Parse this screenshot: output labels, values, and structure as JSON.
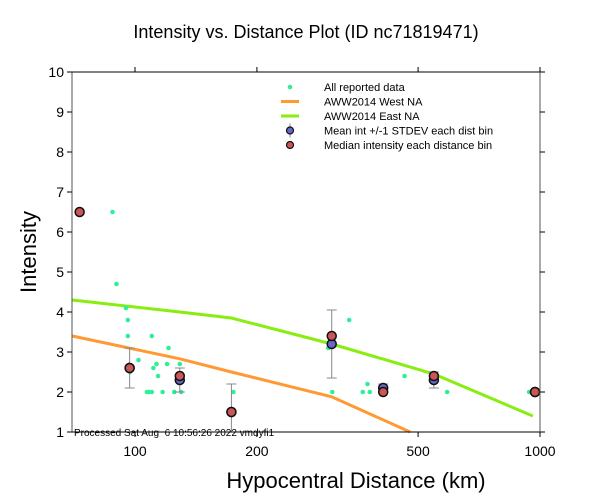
{
  "chart_data": {
    "type": "scatter",
    "title": "Intensity vs. Distance Plot (ID nc71819471)",
    "xlabel": "Hypocentral Distance (km)",
    "ylabel": "Intensity",
    "xscale": "log",
    "xlim": [
      70,
      1000
    ],
    "ylim": [
      1,
      10
    ],
    "xticks": [
      100,
      200,
      500,
      1000
    ],
    "xtick_labels": [
      "100",
      "200",
      "500",
      "1000"
    ],
    "yticks": [
      1,
      2,
      3,
      4,
      5,
      6,
      7,
      8,
      9,
      10
    ],
    "ytick_labels": [
      "1",
      "2",
      "3",
      "4",
      "5",
      "6",
      "7",
      "8",
      "9",
      "10"
    ],
    "grid": false,
    "legend_position": "top-right",
    "footer": "Processed Sat Aug  6 10:56:26 2022 vmdyfi1",
    "colors": {
      "reported": "#33ee99",
      "west": "#ff9933",
      "east": "#88ee11",
      "mean": "#6666cc",
      "median": "#cc5555"
    },
    "legend": [
      {
        "label": "All reported data",
        "kind": "dot"
      },
      {
        "label": "AWW2014 West NA",
        "kind": "line-west"
      },
      {
        "label": "AWW2014 East NA",
        "kind": "line-east"
      },
      {
        "label": "Mean int +/-1 STDEV each dist bin",
        "kind": "mean"
      },
      {
        "label": "Median intensity each distance bin",
        "kind": "median"
      }
    ],
    "series": [
      {
        "name": "All reported data",
        "points": [
          [
            88,
            6.5
          ],
          [
            90,
            4.7
          ],
          [
            95,
            4.1
          ],
          [
            96,
            3.8
          ],
          [
            96,
            3.4
          ],
          [
            97,
            2.5
          ],
          [
            102,
            2.8
          ],
          [
            107,
            2.0
          ],
          [
            108,
            2.0
          ],
          [
            110,
            3.4
          ],
          [
            110,
            2.0
          ],
          [
            111,
            2.6
          ],
          [
            113,
            2.7
          ],
          [
            114,
            2.4
          ],
          [
            117,
            2.0
          ],
          [
            120,
            2.7
          ],
          [
            121,
            3.1
          ],
          [
            125,
            2.0
          ],
          [
            129,
            2.7
          ],
          [
            130,
            2.0
          ],
          [
            125,
            2.0
          ],
          [
            175,
            2.0
          ],
          [
            300,
            3.1
          ],
          [
            307,
            2.0
          ],
          [
            338,
            3.8
          ],
          [
            365,
            2.0
          ],
          [
            375,
            2.2
          ],
          [
            380,
            2.0
          ],
          [
            463,
            2.4
          ],
          [
            590,
            2.0
          ],
          [
            940,
            2.0
          ]
        ]
      },
      {
        "name": "AWW2014 West NA",
        "line": [
          [
            70,
            3.4
          ],
          [
            129,
            2.83
          ],
          [
            173,
            2.5
          ],
          [
            306,
            1.88
          ],
          [
            478,
            1.0
          ]
        ]
      },
      {
        "name": "AWW2014 East NA",
        "line": [
          [
            70,
            4.3
          ],
          [
            129,
            4.0
          ],
          [
            173,
            3.85
          ],
          [
            306,
            3.2
          ],
          [
            547,
            2.45
          ],
          [
            960,
            1.4
          ]
        ]
      },
      {
        "name": "Mean int +/-1 STDEV each dist bin",
        "points": [
          {
            "x": 97,
            "y": 2.6,
            "lo": 2.1,
            "hi": 3.1
          },
          {
            "x": 129,
            "y": 2.3,
            "lo": 2.0,
            "hi": 2.6
          },
          {
            "x": 173,
            "y": 1.5,
            "lo": 1.0,
            "hi": 2.2
          },
          {
            "x": 306,
            "y": 3.2,
            "lo": 2.35,
            "hi": 4.05
          },
          {
            "x": 410,
            "y": 2.1,
            "lo": 2.0,
            "hi": 2.2
          },
          {
            "x": 547,
            "y": 2.3,
            "lo": 2.1,
            "hi": 2.5
          },
          {
            "x": 972,
            "y": 2.0,
            "lo": 2.0,
            "hi": 2.0
          }
        ]
      },
      {
        "name": "Median intensity each distance bin",
        "points": [
          [
            73,
            6.5
          ],
          [
            97,
            2.6
          ],
          [
            129,
            2.4
          ],
          [
            173,
            1.5
          ],
          [
            306,
            3.4
          ],
          [
            410,
            2.0
          ],
          [
            547,
            2.4
          ],
          [
            972,
            2.0
          ]
        ]
      }
    ]
  }
}
